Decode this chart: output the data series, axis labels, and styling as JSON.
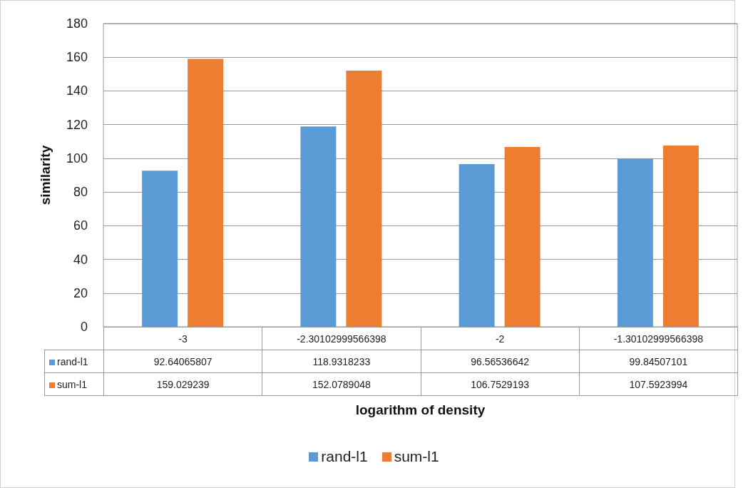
{
  "chart_data": {
    "type": "bar",
    "xlabel": "logarithm of density",
    "ylabel": "similarity",
    "categories": [
      "-3",
      "-2.30102999566398",
      "-2",
      "-1.30102999566398"
    ],
    "series": [
      {
        "name": "rand-l1",
        "color": "#5b9bd5",
        "values": [
          92.64065807,
          118.9318233,
          96.56536642,
          99.84507101
        ]
      },
      {
        "name": "sum-l1",
        "color": "#ed7d31",
        "values": [
          159.029239,
          152.0789048,
          106.7529193,
          107.5923994
        ]
      }
    ],
    "ylim": [
      0,
      180
    ],
    "yticks": [
      0,
      20,
      40,
      60,
      80,
      100,
      120,
      140,
      160,
      180
    ],
    "grid": "y",
    "legend": "bottom",
    "data_labels": true
  }
}
